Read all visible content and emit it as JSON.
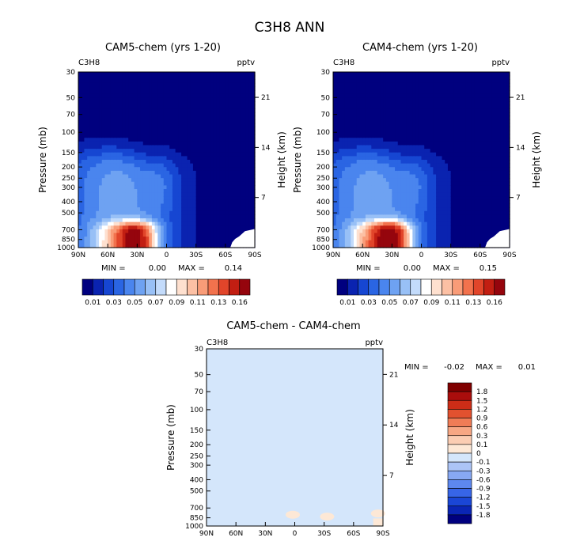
{
  "title": "C3H8 ANN",
  "minmax_labels": {
    "min": "MIN =",
    "max": "MAX ="
  },
  "colors": {
    "abs_palette": [
      "#00007f",
      "#0a23b0",
      "#1646d2",
      "#2a65e3",
      "#4a85ee",
      "#6ea2f2",
      "#98c0f6",
      "#c3dbfb",
      "#ffffff",
      "#fee0cf",
      "#fcc0a4",
      "#f99c78",
      "#f2724d",
      "#e1452a",
      "#c21e12",
      "#95050d"
    ],
    "diff_palette": [
      "#00007f",
      "#0a25b5",
      "#1a46d6",
      "#3765e7",
      "#5d88ef",
      "#87a8f3",
      "#acc4f6",
      "#d4e6fb",
      "#fde8d6",
      "#fbcdb3",
      "#f7a784",
      "#f07c56",
      "#e2512f",
      "#cc2d17",
      "#aa0d0c",
      "#7f0000"
    ]
  },
  "chart_data": [
    {
      "type": "heatmap",
      "title": "CAM5-chem (yrs 1-20)",
      "variable": "C3H8",
      "units": "pptv",
      "ylabel": "Pressure (mb)",
      "ylabel_right": "Height (km)",
      "x": [
        "90N",
        "60N",
        "30N",
        "0",
        "30S",
        "60S",
        "90S"
      ],
      "x_lat": [
        90,
        60,
        30,
        0,
        -30,
        -60,
        -90
      ],
      "xlim": [
        90,
        -90
      ],
      "y_pressure": [
        30,
        50,
        70,
        100,
        150,
        200,
        250,
        300,
        400,
        500,
        700,
        850,
        1000
      ],
      "ylim": [
        1000,
        30
      ],
      "y_log_scale": true,
      "y_height_km": [
        7,
        14,
        21
      ],
      "min_value": "0.00",
      "max_value": "0.14",
      "colorbar_levels": [
        "0.01",
        "0.03",
        "0.05",
        "0.07",
        "0.09",
        "0.11",
        "0.13",
        "0.16"
      ],
      "grid": false
    },
    {
      "type": "heatmap",
      "title": "CAM4-chem (yrs 1-20)",
      "variable": "C3H8",
      "units": "pptv",
      "ylabel": "Pressure (mb)",
      "ylabel_right": "Height (km)",
      "x": [
        "90N",
        "60N",
        "30N",
        "0",
        "30S",
        "60S",
        "90S"
      ],
      "x_lat": [
        90,
        60,
        30,
        0,
        -30,
        -60,
        -90
      ],
      "xlim": [
        90,
        -90
      ],
      "y_pressure": [
        30,
        50,
        70,
        100,
        150,
        200,
        250,
        300,
        400,
        500,
        700,
        850,
        1000
      ],
      "ylim": [
        1000,
        30
      ],
      "y_log_scale": true,
      "y_height_km": [
        7,
        14,
        21
      ],
      "min_value": "0.00",
      "max_value": "0.15",
      "colorbar_levels": [
        "0.01",
        "0.03",
        "0.05",
        "0.07",
        "0.09",
        "0.11",
        "0.13",
        "0.16"
      ],
      "grid": false
    },
    {
      "type": "heatmap",
      "title": "CAM5-chem - CAM4-chem",
      "variable": "C3H8",
      "units": "pptv",
      "ylabel": "Pressure (mb)",
      "ylabel_right": "Height (km)",
      "x": [
        "90N",
        "60N",
        "30N",
        "0",
        "30S",
        "60S",
        "90S"
      ],
      "x_lat": [
        90,
        60,
        30,
        0,
        -30,
        -60,
        -90
      ],
      "xlim": [
        90,
        -90
      ],
      "y_pressure": [
        30,
        50,
        70,
        100,
        150,
        200,
        250,
        300,
        400,
        500,
        700,
        850,
        1000
      ],
      "ylim": [
        1000,
        30
      ],
      "y_log_scale": true,
      "y_height_km": [
        7,
        14,
        21
      ],
      "min_value": "-0.02",
      "max_value": "0.01",
      "colorbar_levels": [
        "1.8",
        "1.5",
        "1.2",
        "0.9",
        "0.6",
        "0.3",
        "0.1",
        "0",
        "-0.1",
        "-0.3",
        "-0.6",
        "-0.9",
        "-1.2",
        "-1.5",
        "-1.8"
      ],
      "grid": false
    }
  ]
}
